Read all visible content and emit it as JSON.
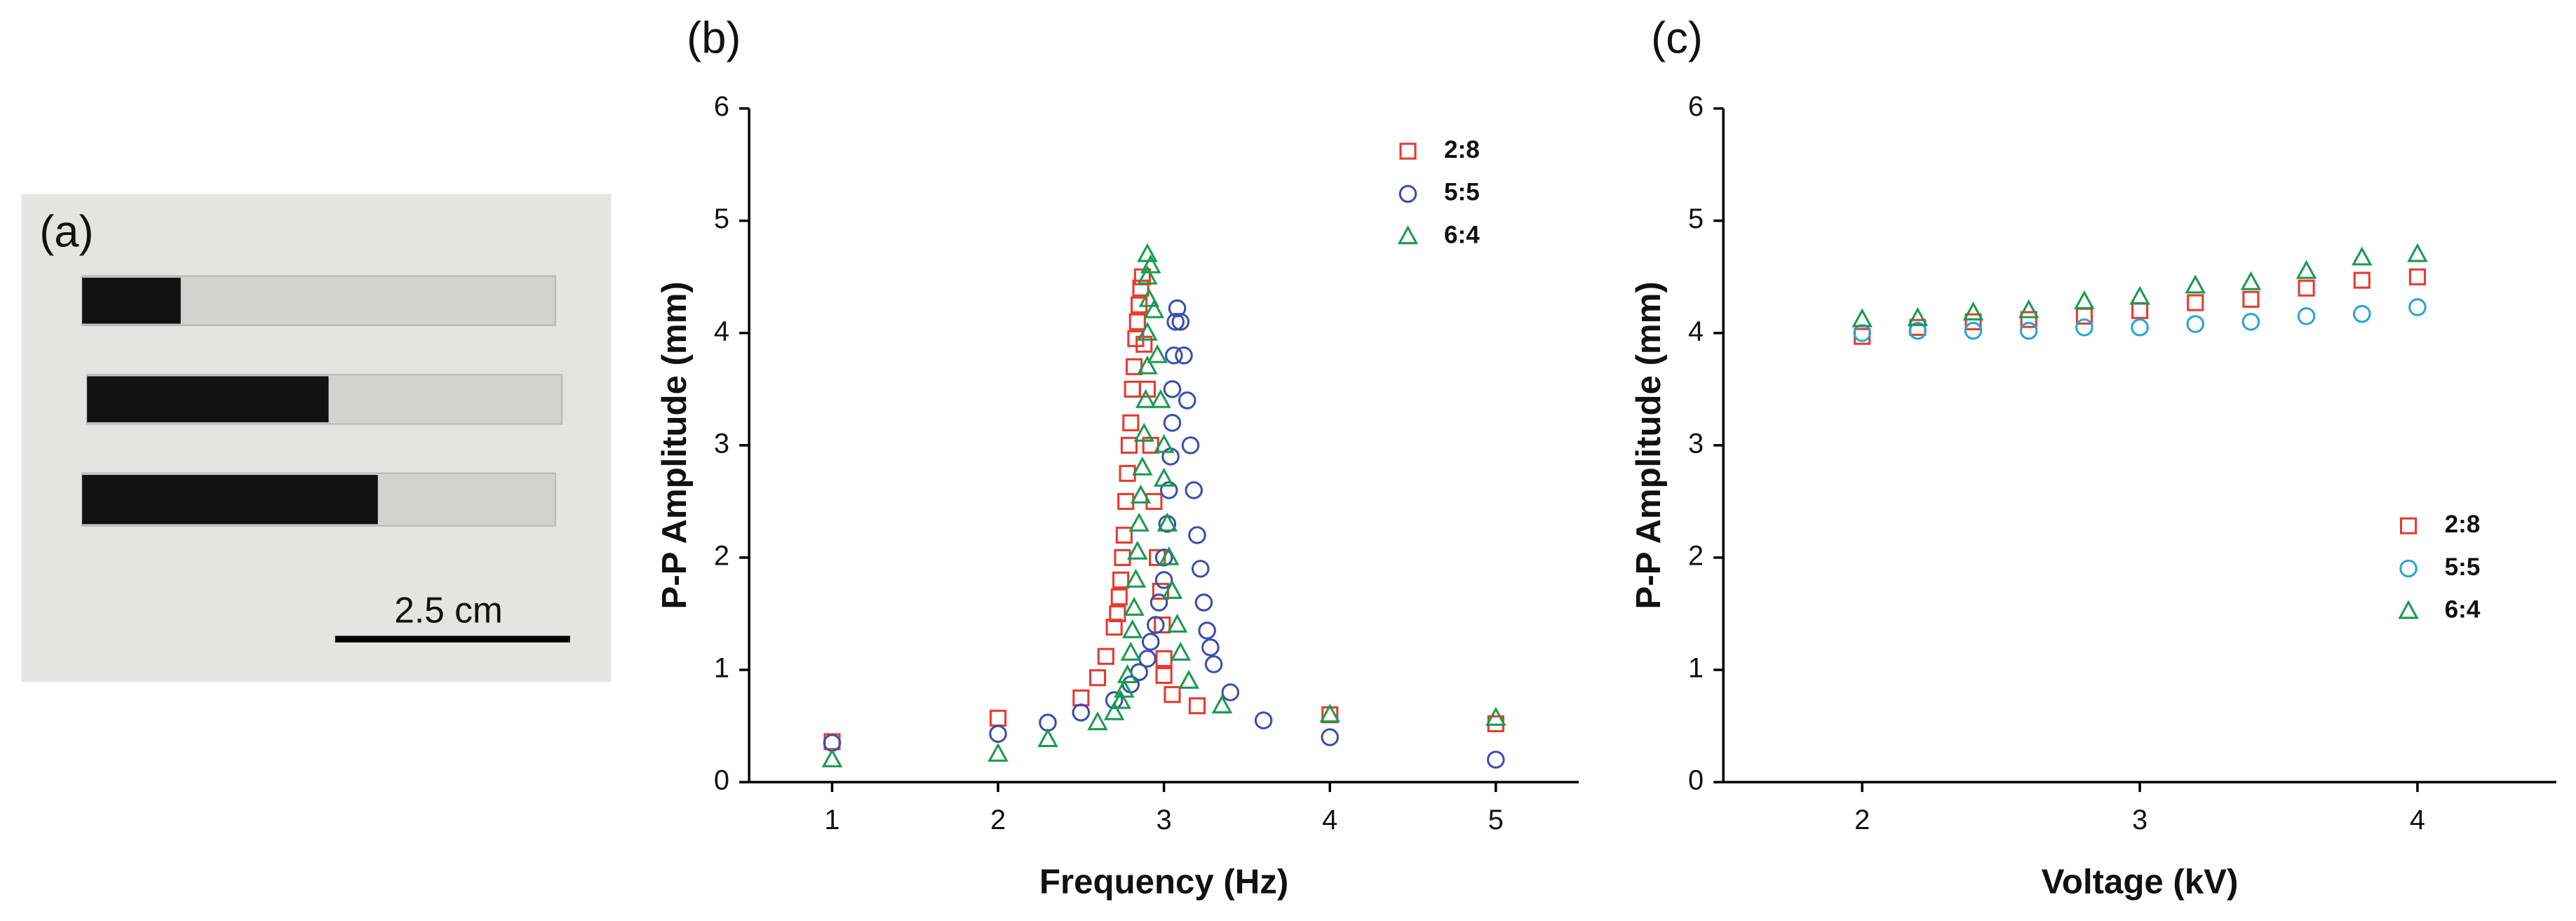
{
  "panel_a": {
    "label": "(a)",
    "scale_bar": "2.5 cm"
  },
  "chart_data": [
    {
      "type": "scatter",
      "label": "(b)",
      "xlabel": "Frequency (Hz)",
      "ylabel": "P-P Amplitude (mm)",
      "xlim": [
        0.5,
        5.5
      ],
      "ylim": [
        0,
        6
      ],
      "xticks": [
        1,
        2,
        3,
        4,
        5
      ],
      "yticks": [
        0,
        1,
        2,
        3,
        4,
        5,
        6
      ],
      "legend": "upper right",
      "series": [
        {
          "name": "2:8",
          "color": "#e8392c",
          "marker": "square",
          "x": [
            1,
            2,
            2.5,
            2.6,
            2.65,
            2.7,
            2.72,
            2.73,
            2.74,
            2.75,
            2.76,
            2.77,
            2.78,
            2.79,
            2.8,
            2.81,
            2.82,
            2.83,
            2.84,
            2.85,
            2.86,
            2.87,
            2.88,
            2.9,
            2.92,
            2.94,
            2.96,
            2.98,
            2.99,
            3.0,
            3.0,
            3.05,
            3.2,
            4,
            5
          ],
          "values": [
            0.36,
            0.57,
            0.75,
            0.93,
            1.12,
            1.38,
            1.5,
            1.65,
            1.8,
            2.0,
            2.2,
            2.5,
            2.75,
            3.0,
            3.2,
            3.5,
            3.7,
            3.95,
            4.1,
            4.25,
            4.4,
            4.5,
            3.9,
            3.5,
            3.0,
            2.5,
            2.0,
            1.7,
            1.4,
            1.1,
            0.95,
            0.78,
            0.68,
            0.6,
            0.52
          ]
        },
        {
          "name": "5:5",
          "color": "#3a4fb0",
          "marker": "circle",
          "x": [
            1,
            2,
            2.3,
            2.5,
            2.7,
            2.8,
            2.85,
            2.9,
            2.92,
            2.95,
            2.97,
            3.0,
            3.0,
            3.02,
            3.03,
            3.04,
            3.05,
            3.05,
            3.06,
            3.07,
            3.08,
            3.1,
            3.12,
            3.14,
            3.16,
            3.18,
            3.2,
            3.22,
            3.24,
            3.26,
            3.28,
            3.3,
            3.4,
            3.6,
            4,
            5
          ],
          "values": [
            0.35,
            0.43,
            0.53,
            0.62,
            0.73,
            0.87,
            0.98,
            1.1,
            1.25,
            1.4,
            1.6,
            1.8,
            2.0,
            2.3,
            2.6,
            2.9,
            3.2,
            3.5,
            3.8,
            4.1,
            4.22,
            4.1,
            3.8,
            3.4,
            3.0,
            2.6,
            2.2,
            1.9,
            1.6,
            1.35,
            1.2,
            1.05,
            0.8,
            0.55,
            0.4,
            0.2
          ]
        },
        {
          "name": "6:4",
          "color": "#1a9a50",
          "marker": "triangle",
          "x": [
            1,
            2,
            2.3,
            2.6,
            2.7,
            2.74,
            2.76,
            2.78,
            2.8,
            2.81,
            2.82,
            2.83,
            2.84,
            2.85,
            2.86,
            2.87,
            2.88,
            2.89,
            2.9,
            2.9,
            2.91,
            2.9,
            2.9,
            2.92,
            2.94,
            2.96,
            2.98,
            3.0,
            3.0,
            3.02,
            3.03,
            3.05,
            3.08,
            3.1,
            3.15,
            3.35,
            4,
            5
          ],
          "values": [
            0.2,
            0.25,
            0.38,
            0.53,
            0.62,
            0.72,
            0.82,
            0.95,
            1.15,
            1.35,
            1.55,
            1.8,
            2.05,
            2.3,
            2.55,
            2.8,
            3.1,
            3.4,
            3.7,
            4.0,
            4.3,
            4.5,
            4.7,
            4.6,
            4.2,
            3.8,
            3.4,
            3.0,
            2.7,
            2.3,
            2.0,
            1.7,
            1.4,
            1.15,
            0.9,
            0.68,
            0.6,
            0.57
          ]
        }
      ]
    },
    {
      "type": "scatter",
      "label": "(c)",
      "xlabel": "Voltage (kV)",
      "ylabel": "P-P Amplitude (mm)",
      "xlim": [
        1.5,
        4.5
      ],
      "ylim": [
        0,
        6
      ],
      "xticks": [
        2,
        3,
        4
      ],
      "yticks": [
        0,
        1,
        2,
        3,
        4,
        5,
        6
      ],
      "legend": "center right",
      "series": [
        {
          "name": "2:8",
          "color": "#e8392c",
          "marker": "square",
          "x": [
            2,
            2.2,
            2.4,
            2.6,
            2.8,
            3,
            3.2,
            3.4,
            3.6,
            3.8,
            4
          ],
          "values": [
            3.97,
            4.05,
            4.1,
            4.12,
            4.15,
            4.2,
            4.27,
            4.3,
            4.4,
            4.47,
            4.5
          ]
        },
        {
          "name": "5:5",
          "color": "#26a6d9",
          "marker": "circle",
          "x": [
            2,
            2.2,
            2.4,
            2.6,
            2.8,
            3,
            3.2,
            3.4,
            3.6,
            3.8,
            4
          ],
          "values": [
            4.0,
            4.02,
            4.02,
            4.02,
            4.05,
            4.05,
            4.08,
            4.1,
            4.15,
            4.17,
            4.23
          ]
        },
        {
          "name": "6:4",
          "color": "#1a9a50",
          "marker": "triangle",
          "x": [
            2,
            2.2,
            2.4,
            2.6,
            2.8,
            3,
            3.2,
            3.4,
            3.6,
            3.8,
            4
          ],
          "values": [
            4.12,
            4.13,
            4.18,
            4.2,
            4.28,
            4.32,
            4.42,
            4.45,
            4.55,
            4.67,
            4.7
          ]
        }
      ]
    }
  ]
}
